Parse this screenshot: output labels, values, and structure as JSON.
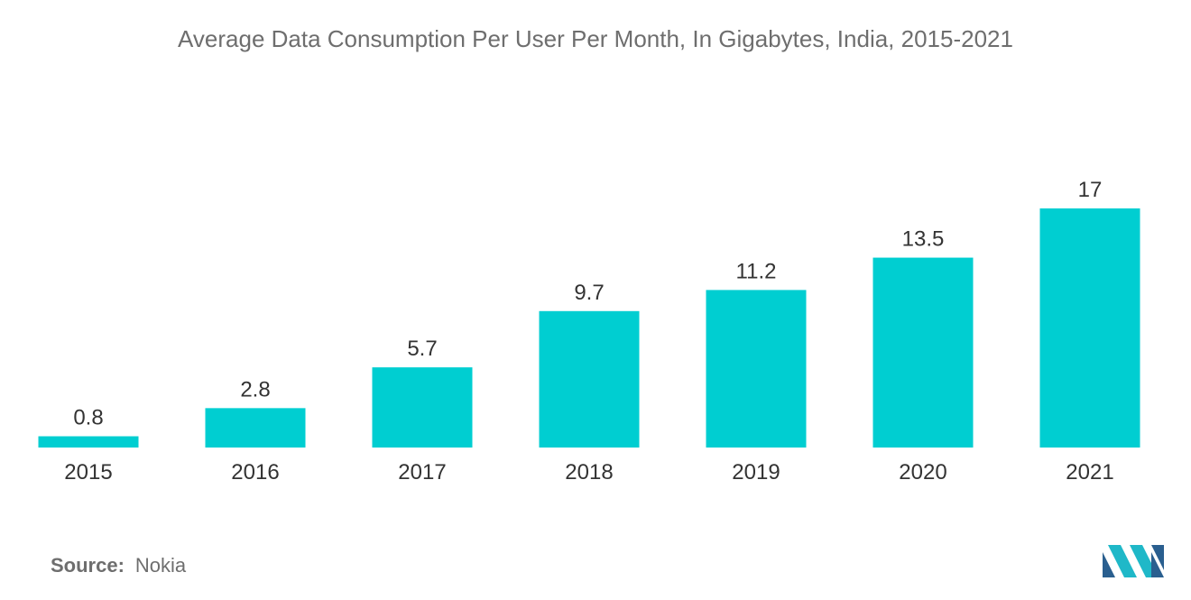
{
  "title": "Average Data Consumption Per User Per Month, In Gigabytes, India, 2015-2021",
  "source": {
    "label": "Source:",
    "value": "Nokia"
  },
  "colors": {
    "bar": "#00CED1",
    "text": "#333333",
    "muted": "#6e6e6e",
    "logo_dark": "#2a5f8f",
    "logo_light": "#1fb8c8"
  },
  "logo": {
    "icon": "mordor-logo-icon"
  },
  "chart_data": {
    "type": "bar",
    "title": "Average Data Consumption Per User Per Month, In Gigabytes, India, 2015-2021",
    "xlabel": "",
    "ylabel": "",
    "categories": [
      "2015",
      "2016",
      "2017",
      "2018",
      "2019",
      "2020",
      "2021"
    ],
    "values": [
      0.8,
      2.8,
      5.7,
      9.7,
      11.2,
      13.5,
      17
    ],
    "value_labels": [
      "0.8",
      "2.8",
      "5.7",
      "9.7",
      "11.2",
      "13.5",
      "17"
    ],
    "ylim": [
      0,
      17
    ],
    "grid": false,
    "legend": "none"
  }
}
